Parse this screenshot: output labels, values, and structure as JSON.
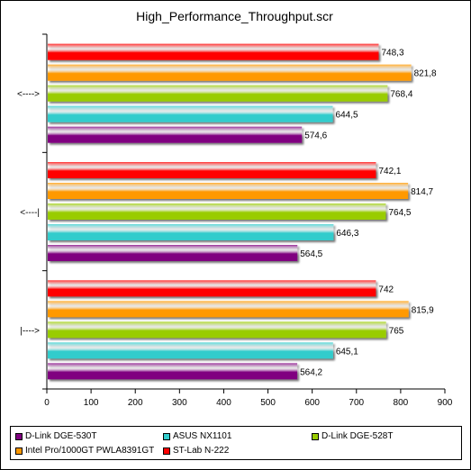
{
  "chart_data": {
    "type": "bar",
    "orientation": "horizontal",
    "title": "High_Performance_Throughput.scr",
    "xlabel": "",
    "ylabel": "",
    "xlim": [
      0,
      900
    ],
    "x_ticks": [
      "0",
      "100",
      "200",
      "300",
      "400",
      "500",
      "600",
      "700",
      "800",
      "900"
    ],
    "grid": false,
    "legend_position": "bottom",
    "categories": [
      "<---->",
      "<----|",
      "|---->"
    ],
    "series": [
      {
        "name": "ST-Lab N-222",
        "color": "#ff0000",
        "values": [
          748.3,
          742.1,
          742
        ],
        "labels": [
          "748,3",
          "742,1",
          "742"
        ]
      },
      {
        "name": "Intel Pro/1000GT PWLA8391GT",
        "color": "#ff9900",
        "values": [
          821.8,
          814.7,
          815.9
        ],
        "labels": [
          "821,8",
          "814,7",
          "815,9"
        ]
      },
      {
        "name": "D-Link DGE-528T",
        "color": "#99cc00",
        "values": [
          768.4,
          764.5,
          765
        ],
        "labels": [
          "768,4",
          "764,5",
          "765"
        ]
      },
      {
        "name": "ASUS NX1101",
        "color": "#33cccc",
        "values": [
          644.5,
          646.3,
          645.1
        ],
        "labels": [
          "644,5",
          "646,3",
          "645,1"
        ]
      },
      {
        "name": "D-Link DGE-530T",
        "color": "#800080",
        "values": [
          574.6,
          564.5,
          564.2
        ],
        "labels": [
          "574,6",
          "564,5",
          "564,2"
        ]
      }
    ],
    "legend": [
      {
        "name": "D-Link DGE-530T",
        "color": "#800080"
      },
      {
        "name": "ASUS NX1101",
        "color": "#33cccc"
      },
      {
        "name": "D-Link DGE-528T",
        "color": "#99cc00"
      },
      {
        "name": "Intel Pro/1000GT PWLA8391GT",
        "color": "#ff9900"
      },
      {
        "name": "ST-Lab N-222",
        "color": "#ff0000"
      }
    ]
  }
}
